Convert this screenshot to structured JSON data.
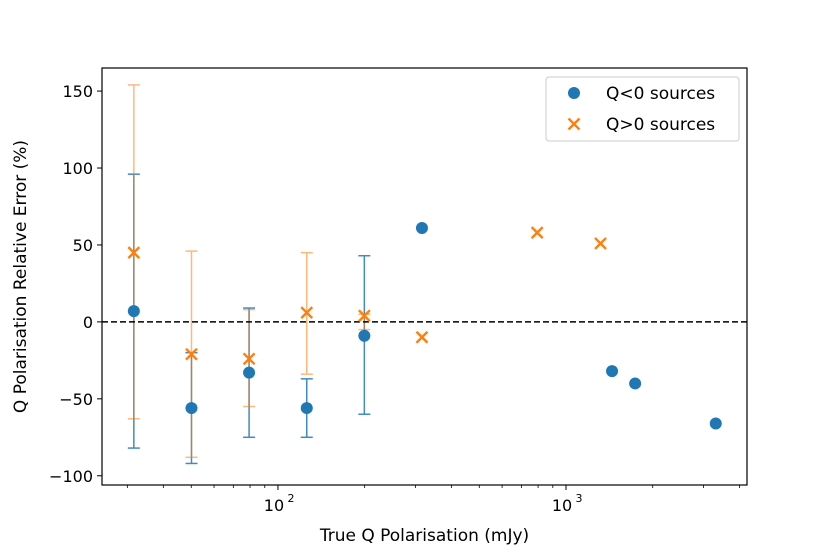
{
  "chart_data": {
    "type": "scatter",
    "xlabel": "True Q Polarisation (mJy)",
    "ylabel": "Q Polarisation Relative Error (%)",
    "xscale": "log",
    "xlim": [
      24.5,
      4250
    ],
    "ylim": [
      -106,
      165
    ],
    "yticks": [
      150,
      100,
      50,
      0,
      -50,
      -100
    ],
    "ytick_labels": [
      "150",
      "100",
      "50",
      "0",
      "−50",
      "−100"
    ],
    "xticks_major": [
      {
        "value": 100,
        "base": "10",
        "exp": "2"
      },
      {
        "value": 1000,
        "base": "10",
        "exp": "3"
      }
    ],
    "xticks_minor": [
      30,
      40,
      50,
      60,
      70,
      80,
      90,
      200,
      300,
      400,
      500,
      600,
      700,
      800,
      900,
      2000,
      3000,
      4000
    ],
    "reference_line": {
      "y": 0,
      "style": "dashed",
      "color": "#000000"
    },
    "legend_position": "top-right",
    "series": [
      {
        "name": "Q<0 sources",
        "marker": "circle",
        "color": "#1f77b4",
        "points": [
          {
            "x": 31.6,
            "y": 7,
            "err_low": -82,
            "err_high": 96
          },
          {
            "x": 50.1,
            "y": -56,
            "err_low": -92,
            "err_high": -20
          },
          {
            "x": 79.4,
            "y": -33,
            "err_low": -75,
            "err_high": 9
          },
          {
            "x": 125.9,
            "y": -56,
            "err_low": -75,
            "err_high": -37
          },
          {
            "x": 199.5,
            "y": -9,
            "err_low": -60,
            "err_high": 43
          },
          {
            "x": 316.2,
            "y": 61
          },
          {
            "x": 1445,
            "y": -32
          },
          {
            "x": 1738,
            "y": -40
          },
          {
            "x": 3311,
            "y": -66
          }
        ]
      },
      {
        "name": "Q>0 sources",
        "marker": "x",
        "color": "#ff7f0e",
        "points": [
          {
            "x": 31.6,
            "y": 45,
            "err_low": -63,
            "err_high": 154
          },
          {
            "x": 50.1,
            "y": -21,
            "err_low": -88,
            "err_high": 46
          },
          {
            "x": 79.4,
            "y": -24,
            "err_low": -55,
            "err_high": 8
          },
          {
            "x": 125.9,
            "y": 6,
            "err_low": -34,
            "err_high": 45
          },
          {
            "x": 199.5,
            "y": 4,
            "err_low": -5,
            "err_high": 5
          },
          {
            "x": 316.2,
            "y": -10
          },
          {
            "x": 794.3,
            "y": 58
          },
          {
            "x": 1318,
            "y": 51
          }
        ]
      }
    ]
  }
}
